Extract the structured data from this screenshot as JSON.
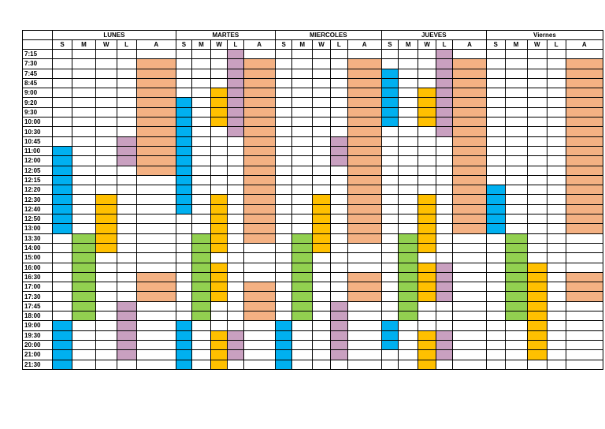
{
  "corner": "",
  "days": [
    "LUNES",
    "MARTES",
    "MIERCOLES",
    "JUEVES",
    "Viernes"
  ],
  "subcolumns": [
    "S",
    "M",
    "W",
    "L",
    "A"
  ],
  "times": [
    "7:15",
    "7:30",
    "7:45",
    "8:45",
    "9:00",
    "9:20",
    "9:30",
    "10:00",
    "10:30",
    "10:45",
    "11:00",
    "12:00",
    "12:05",
    "12:15",
    "12:20",
    "12:30",
    "12:40",
    "12:50",
    "13:00",
    "13:30",
    "14:00",
    "15:00",
    "16:00",
    "16:30",
    "17:00",
    "17:30",
    "17:45",
    "18:00",
    "19:00",
    "19:30",
    "20:00",
    "21:00",
    "21:30"
  ],
  "colors": {
    "S": "#00b0f0",
    "M": "#92d050",
    "W": "#ffc000",
    "L": "#c9a0c0",
    "A": "#f4b183"
  },
  "blocks": [
    {
      "day": 0,
      "col": "S",
      "from": 10,
      "to": 18
    },
    {
      "day": 0,
      "col": "S",
      "from": 28,
      "to": 32
    },
    {
      "day": 0,
      "col": "M",
      "from": 19,
      "to": 27
    },
    {
      "day": 0,
      "col": "W",
      "from": 15,
      "to": 20
    },
    {
      "day": 0,
      "col": "L",
      "from": 9,
      "to": 11
    },
    {
      "day": 0,
      "col": "L",
      "from": 26,
      "to": 31
    },
    {
      "day": 0,
      "col": "A",
      "from": 1,
      "to": 12
    },
    {
      "day": 0,
      "col": "A",
      "from": 23,
      "to": 25
    },
    {
      "day": 1,
      "col": "S",
      "from": 5,
      "to": 16
    },
    {
      "day": 1,
      "col": "S",
      "from": 28,
      "to": 32
    },
    {
      "day": 1,
      "col": "M",
      "from": 19,
      "to": 27
    },
    {
      "day": 1,
      "col": "W",
      "from": 4,
      "to": 7
    },
    {
      "day": 1,
      "col": "W",
      "from": 15,
      "to": 20
    },
    {
      "day": 1,
      "col": "W",
      "from": 22,
      "to": 25
    },
    {
      "day": 1,
      "col": "W",
      "from": 29,
      "to": 32
    },
    {
      "day": 1,
      "col": "L",
      "from": 0,
      "to": 8
    },
    {
      "day": 1,
      "col": "L",
      "from": 29,
      "to": 31
    },
    {
      "day": 1,
      "col": "A",
      "from": 1,
      "to": 19
    },
    {
      "day": 1,
      "col": "A",
      "from": 24,
      "to": 27
    },
    {
      "day": 2,
      "col": "S",
      "from": 28,
      "to": 32
    },
    {
      "day": 2,
      "col": "M",
      "from": 19,
      "to": 27
    },
    {
      "day": 2,
      "col": "W",
      "from": 15,
      "to": 20
    },
    {
      "day": 2,
      "col": "L",
      "from": 9,
      "to": 11
    },
    {
      "day": 2,
      "col": "L",
      "from": 26,
      "to": 31
    },
    {
      "day": 2,
      "col": "A",
      "from": 1,
      "to": 19
    },
    {
      "day": 2,
      "col": "A",
      "from": 23,
      "to": 25
    },
    {
      "day": 3,
      "col": "S",
      "from": 2,
      "to": 7
    },
    {
      "day": 3,
      "col": "S",
      "from": 28,
      "to": 30
    },
    {
      "day": 3,
      "col": "M",
      "from": 19,
      "to": 27
    },
    {
      "day": 3,
      "col": "W",
      "from": 4,
      "to": 7
    },
    {
      "day": 3,
      "col": "W",
      "from": 15,
      "to": 20
    },
    {
      "day": 3,
      "col": "W",
      "from": 22,
      "to": 25
    },
    {
      "day": 3,
      "col": "W",
      "from": 29,
      "to": 32
    },
    {
      "day": 3,
      "col": "L",
      "from": 0,
      "to": 8
    },
    {
      "day": 3,
      "col": "L",
      "from": 22,
      "to": 25
    },
    {
      "day": 3,
      "col": "L",
      "from": 29,
      "to": 31
    },
    {
      "day": 3,
      "col": "A",
      "from": 1,
      "to": 18
    },
    {
      "day": 4,
      "col": "S",
      "from": 14,
      "to": 18
    },
    {
      "day": 4,
      "col": "M",
      "from": 19,
      "to": 27
    },
    {
      "day": 4,
      "col": "W",
      "from": 22,
      "to": 31
    },
    {
      "day": 4,
      "col": "A",
      "from": 1,
      "to": 18
    },
    {
      "day": 4,
      "col": "A",
      "from": 23,
      "to": 25
    }
  ]
}
